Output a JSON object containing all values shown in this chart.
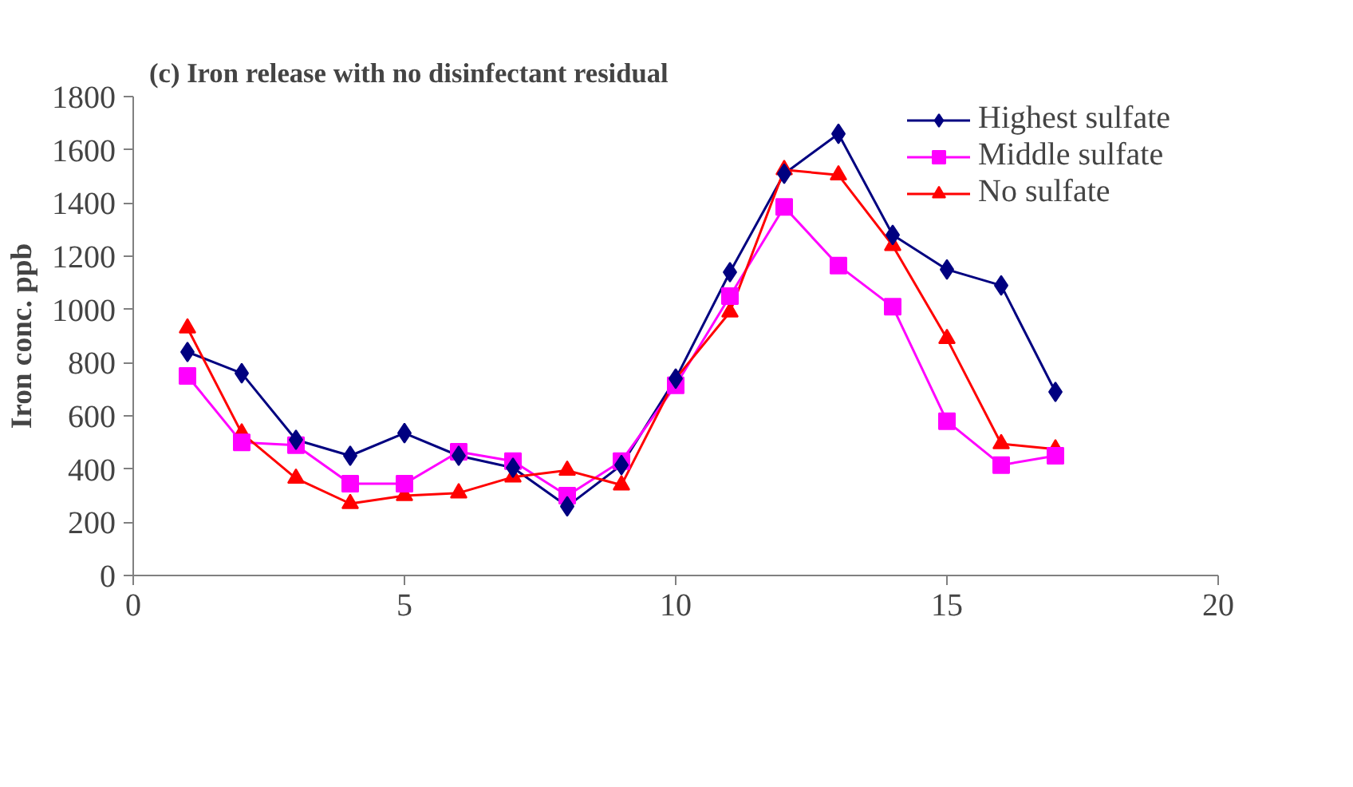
{
  "chart_data": {
    "type": "line",
    "title": "(c) Iron release with no disinfectant residual",
    "ylabel": "Iron conc. ppb",
    "x": [
      1,
      2,
      3,
      4,
      5,
      6,
      7,
      8,
      9,
      10,
      11,
      12,
      13,
      14,
      15,
      16,
      17
    ],
    "series": [
      {
        "name": "Highest sulfate",
        "color": "#000080",
        "marker": "diamond",
        "values": [
          840,
          760,
          510,
          450,
          535,
          450,
          405,
          260,
          415,
          740,
          1140,
          1510,
          1660,
          1280,
          1150,
          1090,
          690
        ]
      },
      {
        "name": "Middle sulfate",
        "color": "#ff00ff",
        "marker": "square",
        "values": [
          750,
          500,
          490,
          345,
          345,
          465,
          430,
          300,
          430,
          715,
          1050,
          1385,
          1165,
          1010,
          580,
          415,
          450
        ]
      },
      {
        "name": "No sulfate",
        "color": "#ff0000",
        "marker": "triangle",
        "values": [
          930,
          535,
          365,
          270,
          300,
          310,
          370,
          395,
          340,
          740,
          990,
          1525,
          1505,
          1240,
          890,
          495,
          475
        ]
      }
    ],
    "xlim": [
      0,
      20
    ],
    "xticks": [
      0,
      5,
      10,
      15,
      20
    ],
    "ylim": [
      0,
      1800
    ],
    "yticks": [
      0,
      200,
      400,
      600,
      800,
      1000,
      1200,
      1400,
      1600,
      1800
    ],
    "grid": false,
    "legend": "top right",
    "line_style": "solid"
  }
}
